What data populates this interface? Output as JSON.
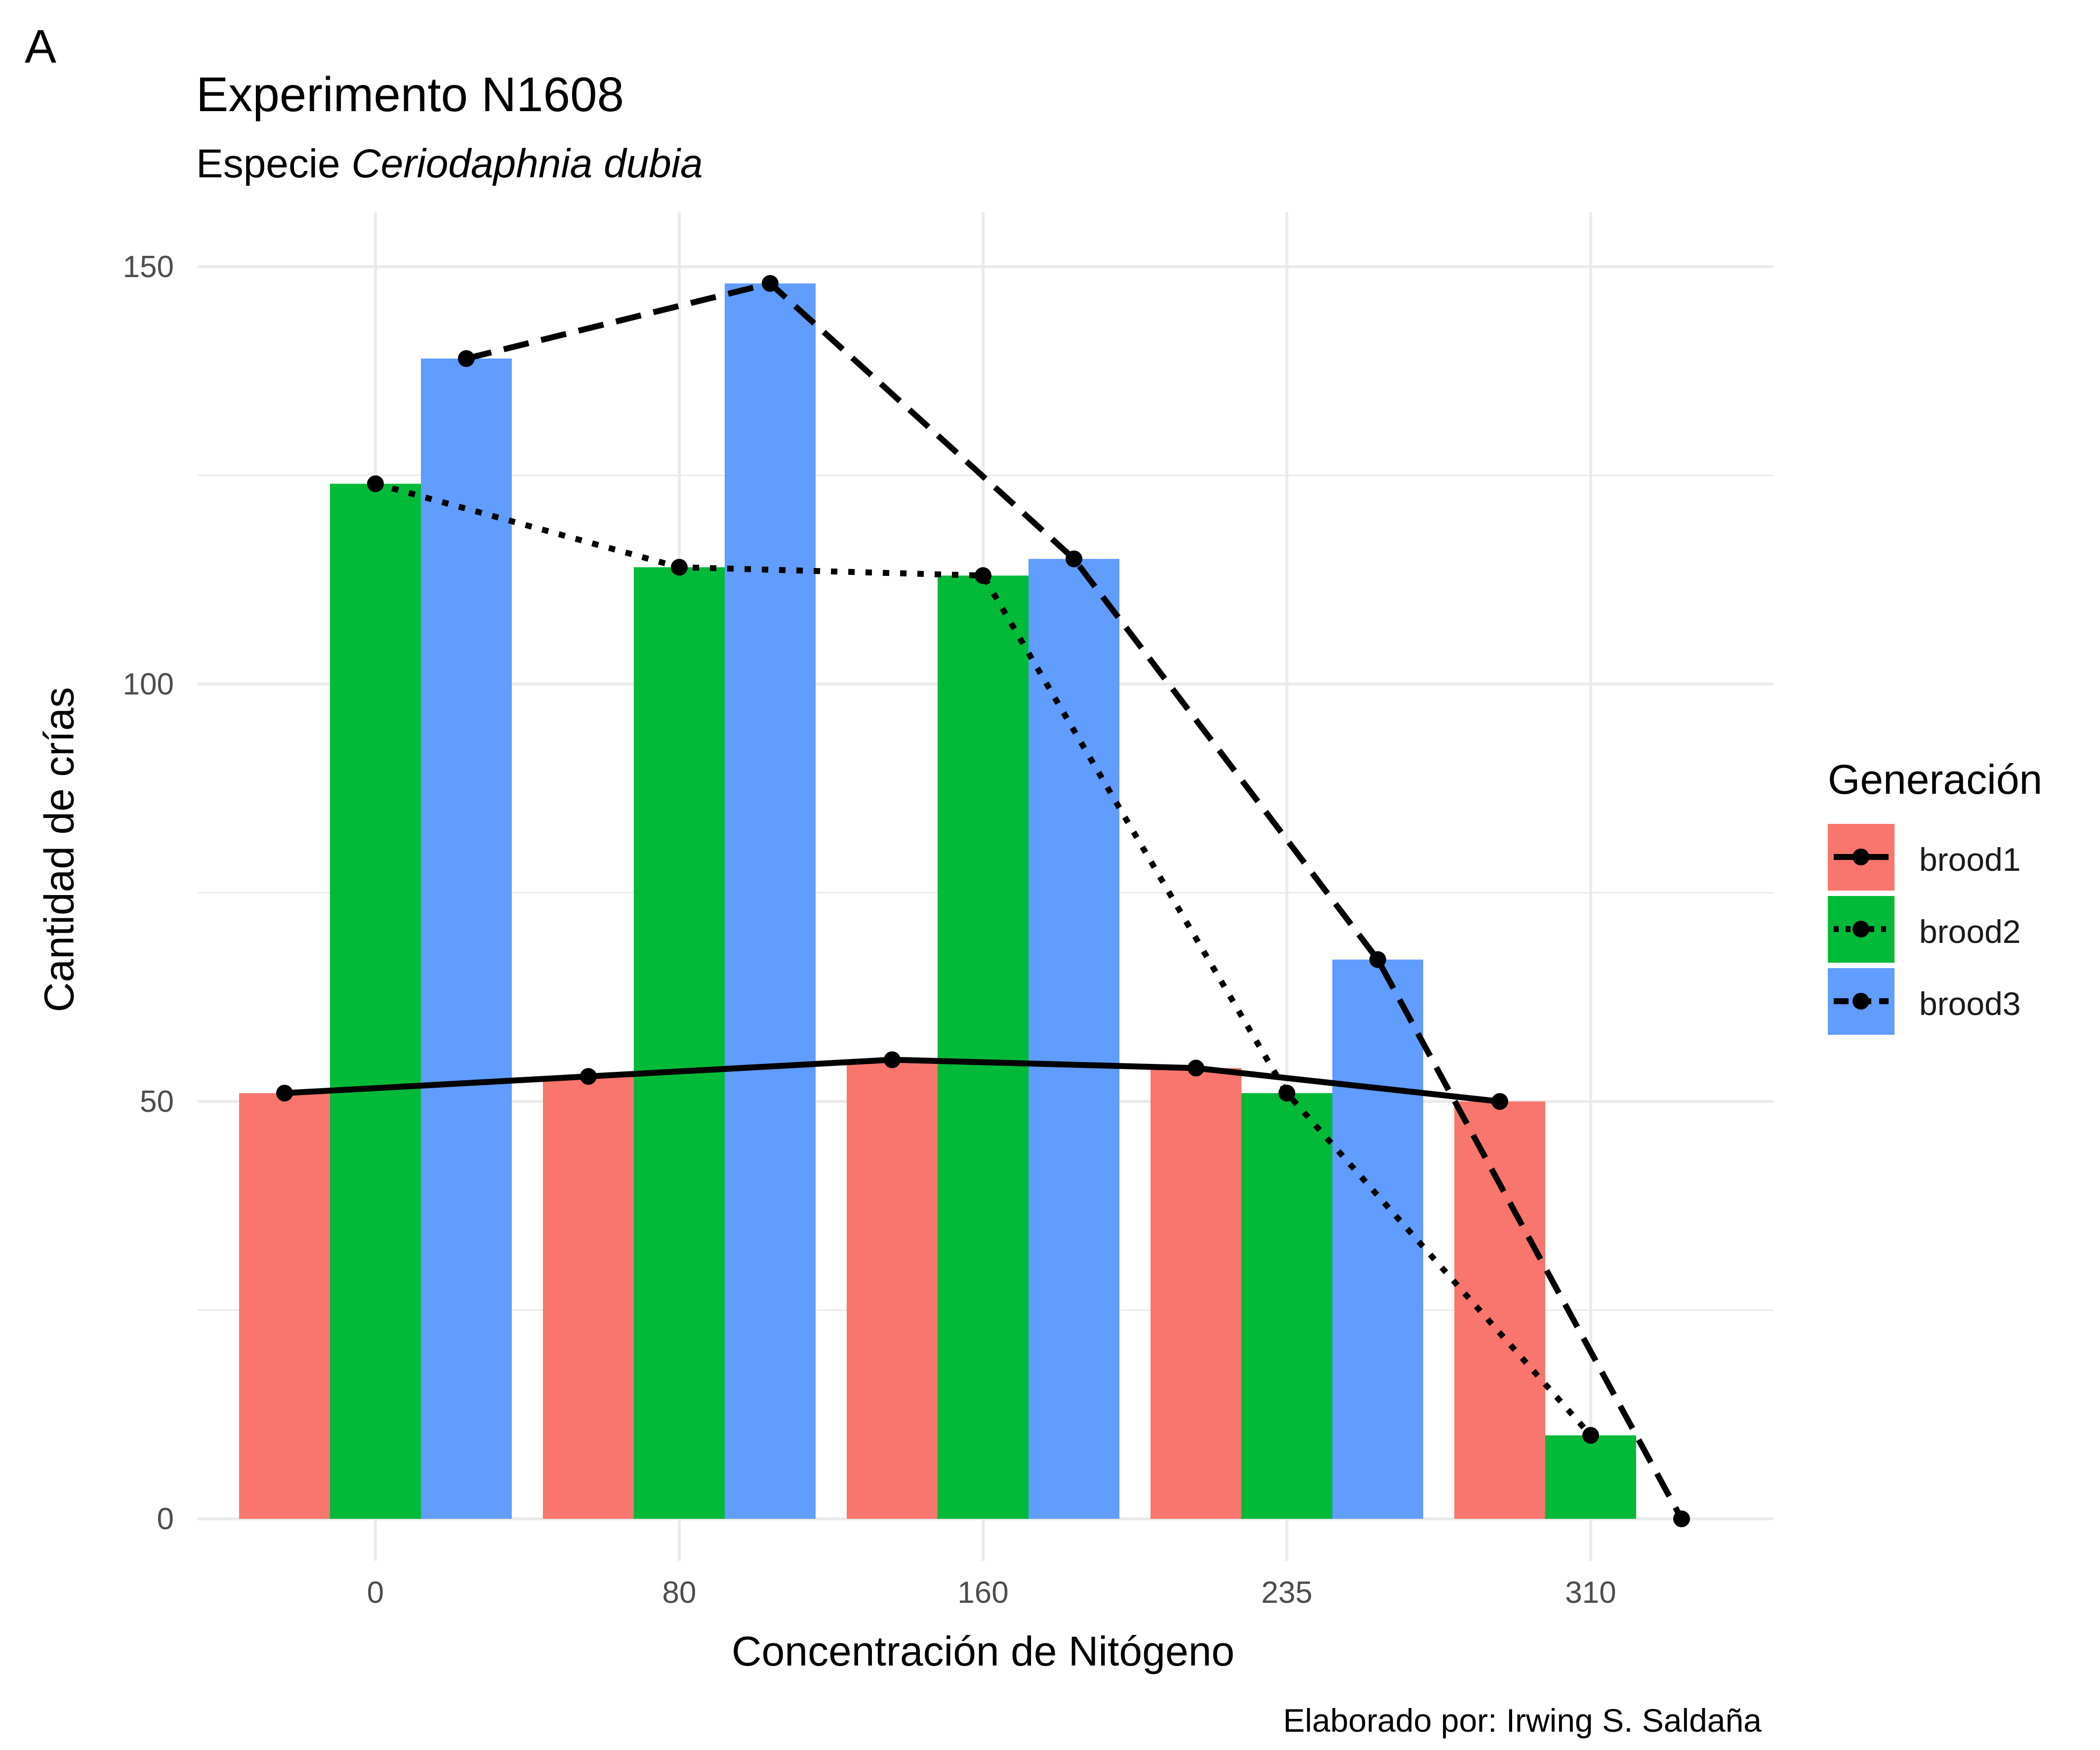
{
  "panel_tag": "A",
  "title": "Experimento N1608",
  "subtitle_prefix": "Especie ",
  "subtitle_species": "Ceriodaphnia dubia",
  "caption": "Elaborado por: Irwing S. Saldaña",
  "colors": {
    "brood1": "#F8766D",
    "brood2": "#00BA38",
    "brood3": "#619CFF",
    "grid": "#ebebeb",
    "line": "#000000"
  },
  "chart_data": {
    "type": "bar",
    "xlabel": "Concentración de Nitógeno",
    "ylabel": "Cantidad de crías",
    "categories": [
      "0",
      "80",
      "160",
      "235",
      "310"
    ],
    "ylim": [
      -5,
      152
    ],
    "yticks": [
      0,
      50,
      100,
      150
    ],
    "grid": true,
    "legend_title": "Generación",
    "legend_position": "right",
    "series": [
      {
        "name": "brood1",
        "values": [
          51,
          53,
          55,
          54,
          50
        ],
        "color": "#F8766D",
        "line_style": "solid"
      },
      {
        "name": "brood2",
        "values": [
          124,
          114,
          113,
          51,
          10
        ],
        "color": "#00BA38",
        "line_style": "dotted"
      },
      {
        "name": "brood3",
        "values": [
          139,
          148,
          115,
          67,
          0
        ],
        "color": "#619CFF",
        "line_style": "dashed"
      }
    ]
  }
}
